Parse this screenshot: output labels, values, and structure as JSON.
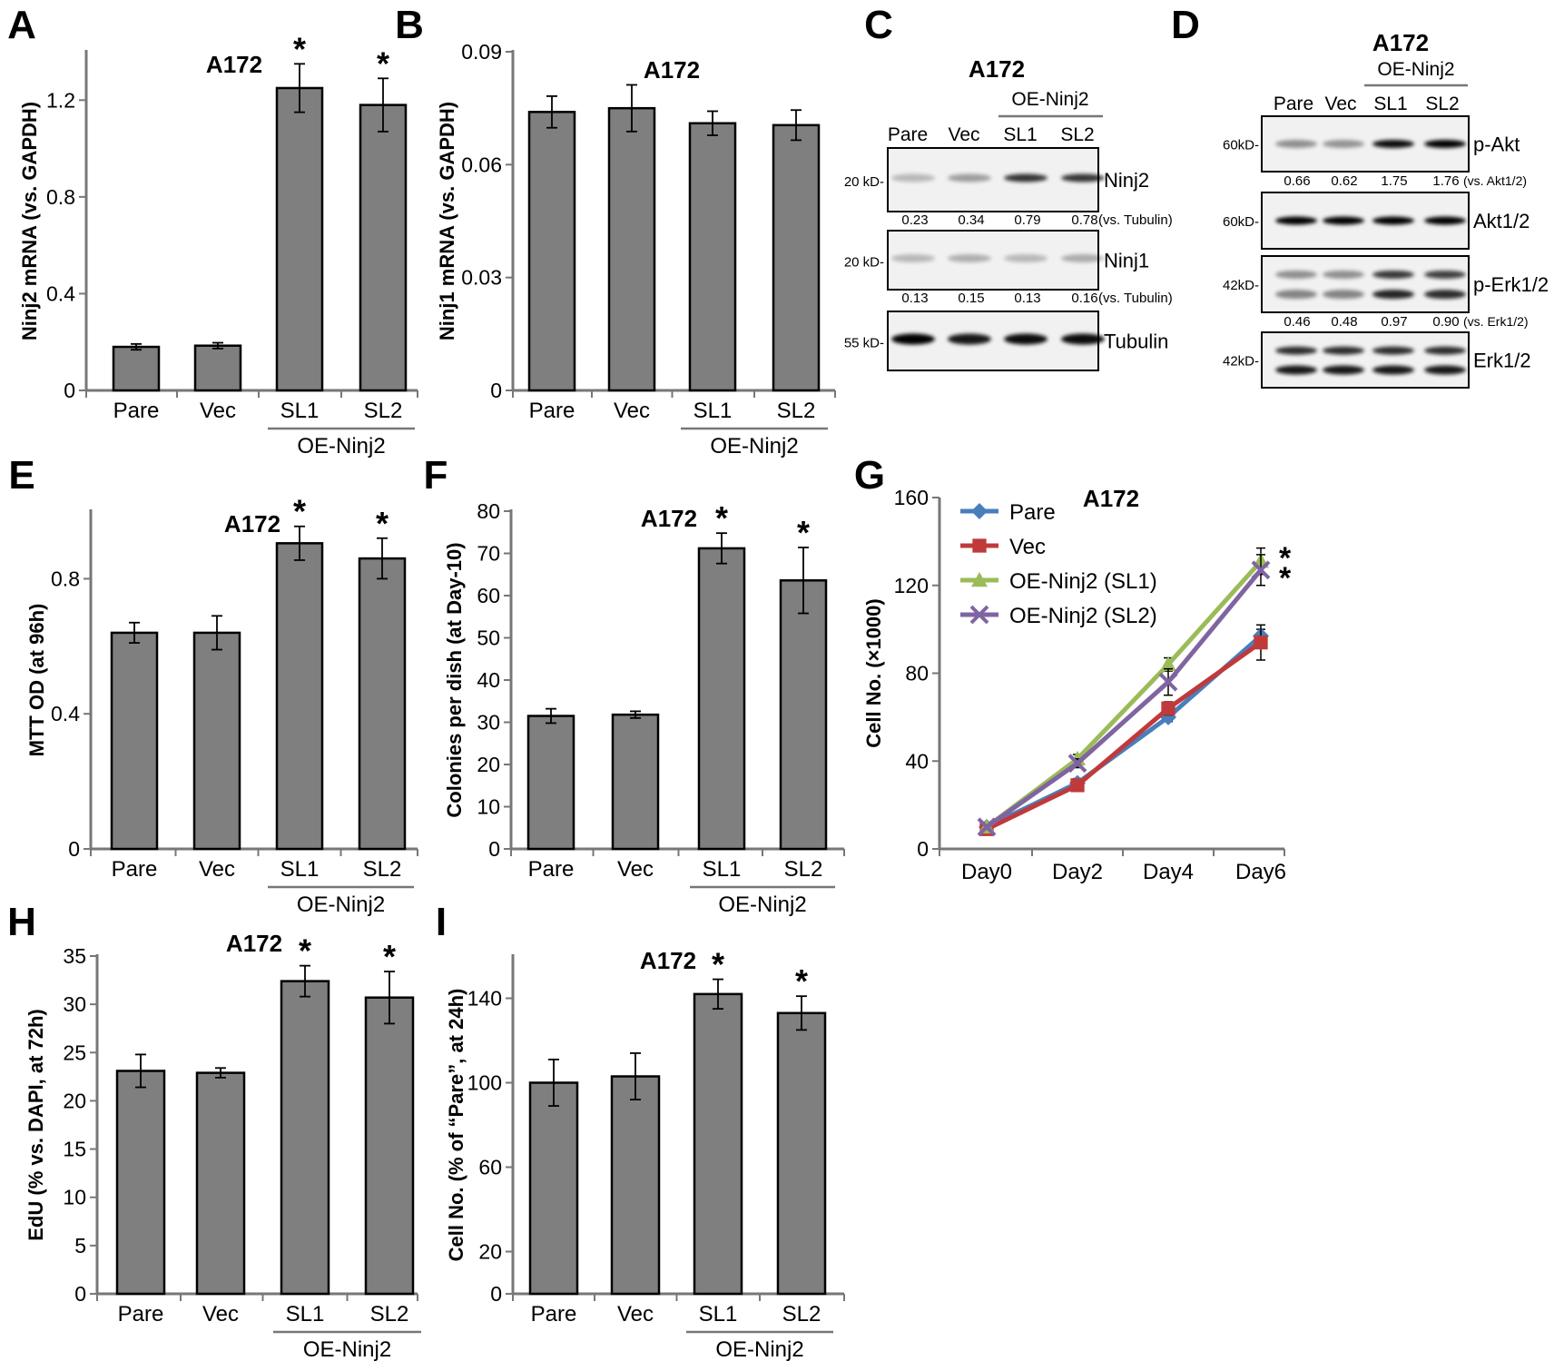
{
  "common": {
    "cell_line": "A172",
    "group_label": "OE-Ninj2",
    "categories": [
      "Pare",
      "Vec",
      "SL1",
      "SL2"
    ]
  },
  "colors": {
    "bar": "#7f7f7f",
    "pare": "#4a7ebb",
    "vec": "#c0393b",
    "sl1": "#9bbb59",
    "sl2": "#8064a2"
  },
  "chart_data": [
    {
      "panel": "A",
      "type": "bar",
      "title": "A172",
      "ylabel": "Ninj2 mRNA (vs. GAPDH)",
      "ylim": [
        0,
        1.4
      ],
      "yticks": [
        0,
        0.4,
        0.8,
        1.2
      ],
      "ytick_labels": [
        "0",
        "0.4",
        "0.8",
        "1.2"
      ],
      "categories": [
        "Pare",
        "Vec",
        "SL1",
        "SL2"
      ],
      "values": [
        0.18,
        0.185,
        1.25,
        1.18
      ],
      "errors": [
        0.012,
        0.012,
        0.1,
        0.11
      ],
      "significant": [
        false,
        false,
        true,
        true
      ],
      "group_label": "OE-Ninj2"
    },
    {
      "panel": "B",
      "type": "bar",
      "title": "A172",
      "ylabel": "Ninj1 mRNA (vs. GAPDH)",
      "ylim": [
        0,
        0.09
      ],
      "yticks": [
        0,
        0.03,
        0.06,
        0.09
      ],
      "ytick_labels": [
        "0",
        "0.03",
        "0.06",
        "0.09"
      ],
      "categories": [
        "Pare",
        "Vec",
        "SL1",
        "SL2"
      ],
      "values": [
        0.074,
        0.075,
        0.071,
        0.0705
      ],
      "errors": [
        0.0042,
        0.0062,
        0.0032,
        0.004
      ],
      "significant": [
        false,
        false,
        false,
        false
      ],
      "group_label": "OE-Ninj2"
    },
    {
      "panel": "E",
      "type": "bar",
      "title": "A172",
      "ylabel": "MTT OD (at 96h)",
      "ylim": [
        0,
        1.0
      ],
      "yticks": [
        0,
        0.4,
        0.8
      ],
      "ytick_labels": [
        "0",
        "0.4",
        "0.8"
      ],
      "categories": [
        "Pare",
        "Vec",
        "SL1",
        "SL2"
      ],
      "values": [
        0.64,
        0.64,
        0.905,
        0.86
      ],
      "errors": [
        0.03,
        0.05,
        0.05,
        0.06
      ],
      "significant": [
        false,
        false,
        true,
        true
      ],
      "group_label": "OE-Ninj2"
    },
    {
      "panel": "F",
      "type": "bar",
      "title": "A172",
      "ylabel": "Colonies per dish (at Day-10)",
      "ylim": [
        0,
        80
      ],
      "yticks": [
        0,
        10,
        20,
        30,
        40,
        50,
        60,
        70,
        80
      ],
      "ytick_labels": [
        "0",
        "10",
        "20",
        "30",
        "40",
        "50",
        "60",
        "70",
        "80"
      ],
      "categories": [
        "Pare",
        "Vec",
        "SL1",
        "SL2"
      ],
      "values": [
        31.5,
        31.8,
        71.2,
        63.6
      ],
      "errors": [
        1.7,
        0.8,
        3.6,
        7.8
      ],
      "significant": [
        false,
        false,
        true,
        true
      ],
      "group_label": "OE-Ninj2"
    },
    {
      "panel": "H",
      "type": "bar",
      "title": "A172",
      "ylabel": "EdU (% vs. DAPI, at 72h)",
      "ylim": [
        0,
        35
      ],
      "yticks": [
        0,
        5,
        10,
        15,
        20,
        25,
        30,
        35
      ],
      "ytick_labels": [
        "0",
        "5",
        "10",
        "15",
        "20",
        "25",
        "30",
        "35"
      ],
      "categories": [
        "Pare",
        "Vec",
        "SL1",
        "SL2"
      ],
      "values": [
        23.1,
        22.9,
        32.4,
        30.7
      ],
      "errors": [
        1.7,
        0.5,
        1.6,
        2.7
      ],
      "significant": [
        false,
        false,
        true,
        true
      ],
      "group_label": "OE-Ninj2"
    },
    {
      "panel": "I",
      "type": "bar",
      "title": "A172",
      "ylabel": "Cell No. (% of “Pare”, at 24h)",
      "ylim": [
        0,
        160
      ],
      "yticks": [
        0,
        20,
        60,
        100,
        140
      ],
      "ytick_labels": [
        "0",
        "20",
        "60",
        "100",
        "140"
      ],
      "categories": [
        "Pare",
        "Vec",
        "SL1",
        "SL2"
      ],
      "values": [
        100,
        103,
        142,
        133
      ],
      "errors": [
        11,
        11,
        7,
        8
      ],
      "significant": [
        false,
        false,
        true,
        true
      ],
      "group_label": "OE-Ninj2"
    },
    {
      "panel": "G",
      "type": "line",
      "title": "A172",
      "ylabel": "Cell No. (×1000)",
      "ylim": [
        0,
        160
      ],
      "yticks": [
        0,
        40,
        80,
        120,
        160
      ],
      "ytick_labels": [
        "0",
        "40",
        "80",
        "120",
        "160"
      ],
      "categories": [
        "Day0",
        "Day2",
        "Day4",
        "Day6"
      ],
      "series": [
        {
          "name": "Pare",
          "values": [
            10,
            30,
            60,
            97
          ],
          "errors": [
            1,
            2,
            2,
            3
          ],
          "marker": "diamond",
          "significant": false
        },
        {
          "name": "Vec",
          "values": [
            9,
            29,
            64,
            94
          ],
          "errors": [
            1,
            2,
            3,
            8
          ],
          "marker": "square",
          "significant": false
        },
        {
          "name": "OE-Ninj2 (SL1)",
          "values": [
            10,
            41,
            84,
            131
          ],
          "errors": [
            1,
            2,
            3,
            6
          ],
          "marker": "triangle",
          "significant": true
        },
        {
          "name": "OE-Ninj2 (SL2)",
          "values": [
            10,
            39,
            76,
            127
          ],
          "errors": [
            1,
            2,
            6,
            7
          ],
          "marker": "x",
          "significant": true
        }
      ],
      "legend_placement": "top-left"
    }
  ],
  "blots": [
    {
      "panel": "C",
      "title": "A172",
      "lanes": [
        "Pare",
        "Vec",
        "SL1",
        "SL2"
      ],
      "group_label": "OE-Ninj2",
      "rows": [
        {
          "protein": "Ninj2",
          "mw": "20 kD-",
          "quant": [
            "0.23",
            "0.34",
            "0.79",
            "0.78"
          ],
          "quant_ref": "(vs. Tubulin)",
          "intensity": [
            0.23,
            0.34,
            0.79,
            0.78
          ]
        },
        {
          "protein": "Ninj1",
          "mw": "20 kD-",
          "quant": [
            "0.13",
            "0.15",
            "0.13",
            "0.16"
          ],
          "quant_ref": "(vs. Tubulin)",
          "intensity": [
            0.13,
            0.15,
            0.13,
            0.16
          ]
        },
        {
          "protein": "Tubulin",
          "mw": "55 kD-",
          "quant": [],
          "quant_ref": "",
          "intensity": [
            1,
            0.9,
            0.95,
            0.95
          ]
        }
      ]
    },
    {
      "panel": "D",
      "title": "A172",
      "lanes": [
        "Pare",
        "Vec",
        "SL1",
        "SL2"
      ],
      "group_label": "OE-Ninj2",
      "rows": [
        {
          "protein": "p-Akt",
          "mw": "60kD-",
          "quant": [
            "0.66",
            "0.62",
            "1.75",
            "1.76"
          ],
          "quant_ref": "(vs. Akt1/2)",
          "intensity": [
            0.4,
            0.38,
            0.95,
            1.0
          ]
        },
        {
          "protein": "Akt1/2",
          "mw": "60kD-",
          "quant": [],
          "quant_ref": "",
          "intensity": [
            1,
            1,
            1,
            1
          ]
        },
        {
          "protein": "p-Erk1/2",
          "mw": "42kD-",
          "quant": [
            "0.46",
            "0.48",
            "0.97",
            "0.90"
          ],
          "quant_ref": "(vs. Erk1/2)",
          "intensity": [
            0.45,
            0.45,
            0.85,
            0.82
          ]
        },
        {
          "protein": "Erk1/2",
          "mw": "42kD-",
          "quant": [],
          "quant_ref": "",
          "intensity": [
            0.9,
            0.9,
            0.9,
            0.9
          ]
        }
      ]
    }
  ],
  "panel_letters": [
    "A",
    "B",
    "C",
    "D",
    "E",
    "F",
    "G",
    "H",
    "I"
  ],
  "star": "*"
}
